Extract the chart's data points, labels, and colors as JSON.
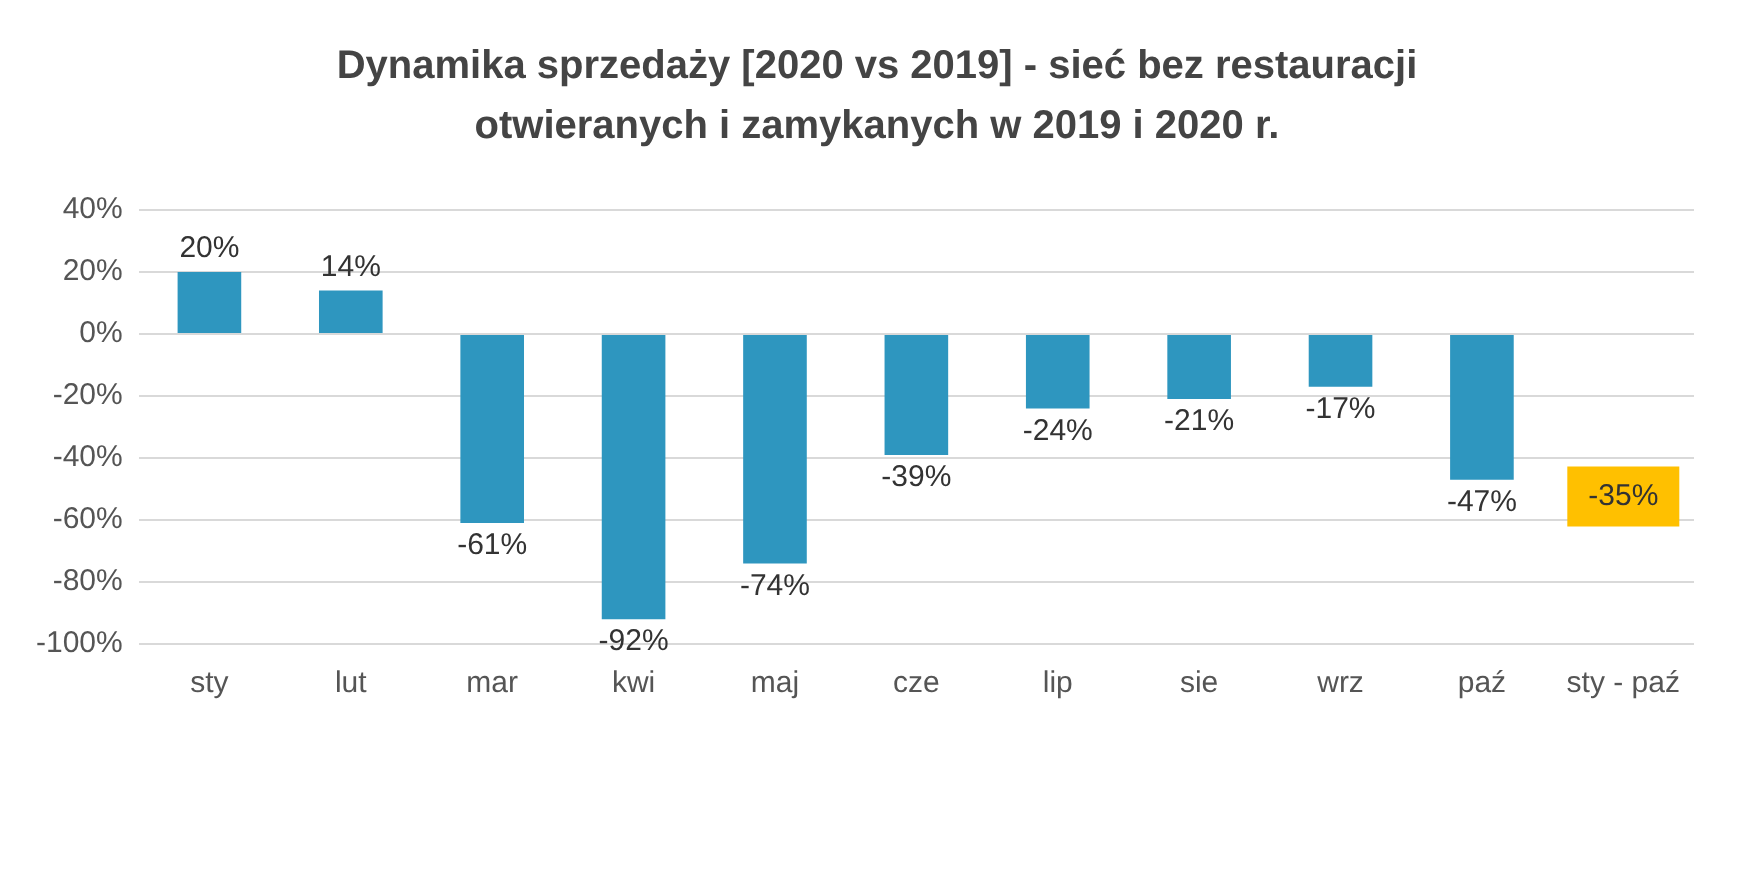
{
  "chart_data": {
    "type": "bar",
    "title": "Dynamika sprzedaży [2020 vs 2019] - sieć bez restauracji otwieranych i zamykanych w 2019 i 2020 r.",
    "categories": [
      "sty",
      "lut",
      "mar",
      "kwi",
      "maj",
      "cze",
      "lip",
      "sie",
      "wrz",
      "paź",
      "sty - paź"
    ],
    "values": [
      20,
      14,
      -61,
      -92,
      -74,
      -39,
      -24,
      -21,
      -17,
      -47,
      null
    ],
    "value_labels": [
      "20%",
      "14%",
      "-61%",
      "-92%",
      "-74%",
      "-39%",
      "-24%",
      "-21%",
      "-17%",
      "-47%",
      null
    ],
    "color": "#2e96bf",
    "ylim": [
      -100,
      40
    ],
    "yticks": [
      {
        "value": -100,
        "label": "-100%"
      },
      {
        "value": -80,
        "label": "-80%"
      },
      {
        "value": -60,
        "label": "-60%"
      },
      {
        "value": -40,
        "label": "-40%"
      },
      {
        "value": -20,
        "label": "-20%"
      },
      {
        "value": 0,
        "label": "0%"
      },
      {
        "value": 20,
        "label": "20%"
      },
      {
        "value": 40,
        "label": "40%"
      }
    ],
    "grid": "y",
    "annotations": [
      "-35%"
    ]
  }
}
